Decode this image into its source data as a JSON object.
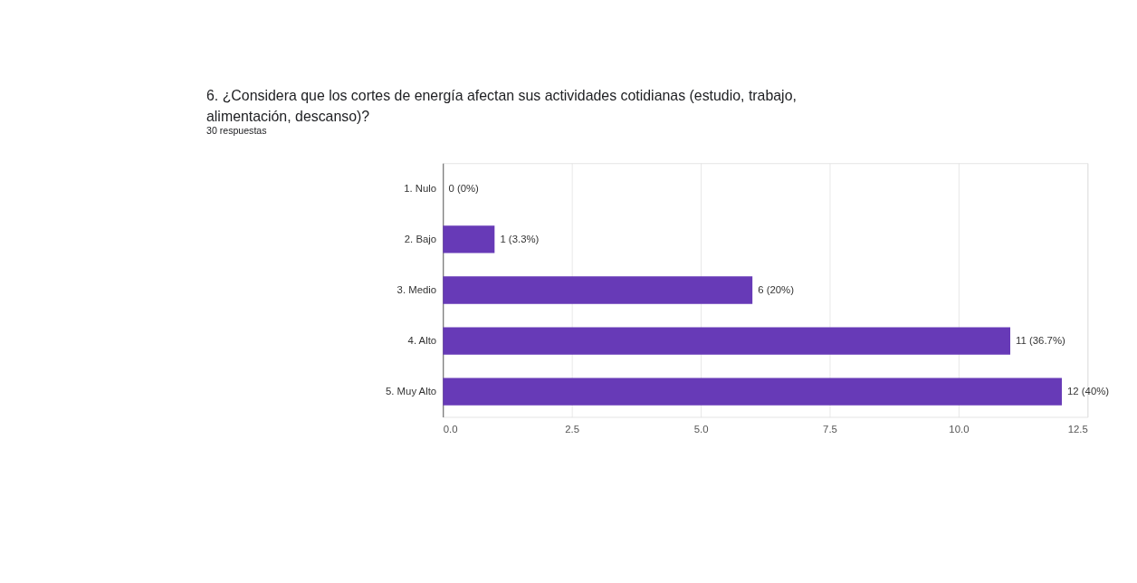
{
  "chart_data": {
    "type": "bar",
    "orientation": "horizontal",
    "title": [
      "6. ¿Considera que los cortes de energía afectan sus actividades cotidianas (estudio, trabajo,",
      "alimentación, descanso)?"
    ],
    "subtitle": "30 respuestas",
    "categories": [
      "1. Nulo",
      "2. Bajo",
      "3. Medio",
      "4. Alto",
      "5. Muy Alto"
    ],
    "values": [
      0,
      1,
      6,
      11,
      12
    ],
    "value_labels": [
      "0 (0%)",
      "1 (3.3%)",
      "6 (20%)",
      "11 (36.7%)",
      "12 (40%)"
    ],
    "color": "#673ab7",
    "xlim": [
      0,
      12.5
    ],
    "xticks": [
      {
        "value": 0,
        "label": "0.0"
      },
      {
        "value": 2.5,
        "label": "2.5"
      },
      {
        "value": 5,
        "label": "5.0"
      },
      {
        "value": 7.5,
        "label": "7.5"
      },
      {
        "value": 10,
        "label": "10.0"
      },
      {
        "value": 12.5,
        "label": "12.5"
      }
    ],
    "grid": "x"
  }
}
